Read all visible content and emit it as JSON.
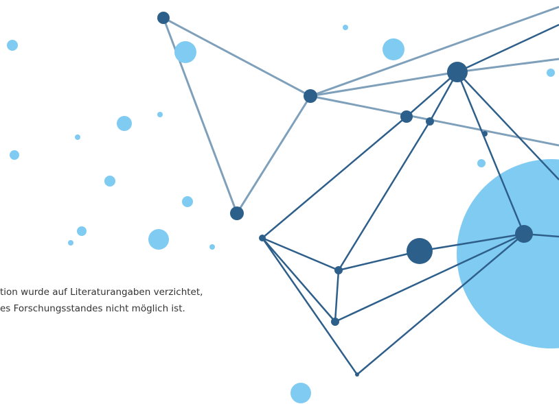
{
  "text": {
    "lines": [
      "tion wurde auf Literaturangaben verzichtet,",
      "es Forschungsstandes nicht möglich ist."
    ]
  }
}
